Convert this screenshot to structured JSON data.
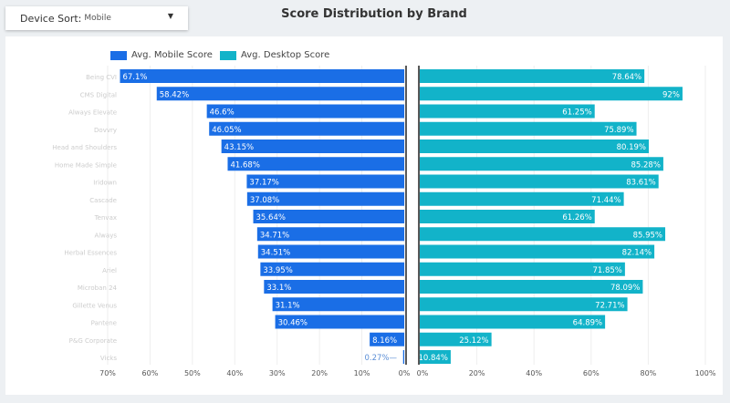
{
  "dropdown": {
    "label": "Device Sort:",
    "value": "Mobile"
  },
  "colors": {
    "mobile": "#1a6ee6",
    "desktop": "#12b3c9"
  },
  "chart_data": {
    "type": "bar",
    "title": "Score Distribution by Brand",
    "legend": [
      "Avg. Mobile Score",
      "Avg. Desktop Score"
    ],
    "legend_position": "top",
    "categories": [
      "Being CVI",
      "CMS Digital",
      "Always Elevate",
      "Dovvry",
      "Head and Shoulders",
      "Home Made Simple",
      "Iridown",
      "Cascade",
      "Tenvax",
      "Always",
      "Herbal Essences",
      "Ariel",
      "Microban 24",
      "Gillette Venus",
      "Pantene",
      "P&G Corporate",
      "Vicks"
    ],
    "series": [
      {
        "name": "Avg. Mobile Score",
        "values": [
          67.1,
          58.42,
          46.6,
          46.05,
          43.15,
          41.68,
          37.17,
          37.08,
          35.64,
          34.71,
          34.51,
          33.95,
          33.1,
          31.1,
          30.46,
          8.16,
          0.27
        ],
        "labels": [
          "67.1%",
          "58.42%",
          "46.6%",
          "46.05%",
          "43.15%",
          "41.68%",
          "37.17%",
          "37.08%",
          "35.64%",
          "34.71%",
          "34.51%",
          "33.95%",
          "33.1%",
          "31.1%",
          "30.46%",
          "8.16%",
          "0.27%"
        ],
        "xlim": [
          70,
          0
        ],
        "ticks": [
          "70%",
          "60%",
          "50%",
          "40%",
          "30%",
          "20%",
          "10%",
          "0%"
        ]
      },
      {
        "name": "Avg. Desktop Score",
        "values": [
          78.64,
          92,
          61.25,
          75.89,
          80.19,
          85.28,
          83.61,
          71.44,
          61.26,
          85.95,
          82.14,
          71.85,
          78.09,
          72.71,
          64.89,
          25.12,
          10.84
        ],
        "labels": [
          "78.64%",
          "92%",
          "61.25%",
          "75.89%",
          "80.19%",
          "85.28%",
          "83.61%",
          "71.44%",
          "61.26%",
          "85.95%",
          "82.14%",
          "71.85%",
          "78.09%",
          "72.71%",
          "64.89%",
          "25.12%",
          "10.84%"
        ],
        "xlim": [
          0,
          100
        ],
        "ticks": [
          "0%",
          "20%",
          "40%",
          "60%",
          "80%",
          "100%"
        ]
      }
    ],
    "grid": true
  }
}
